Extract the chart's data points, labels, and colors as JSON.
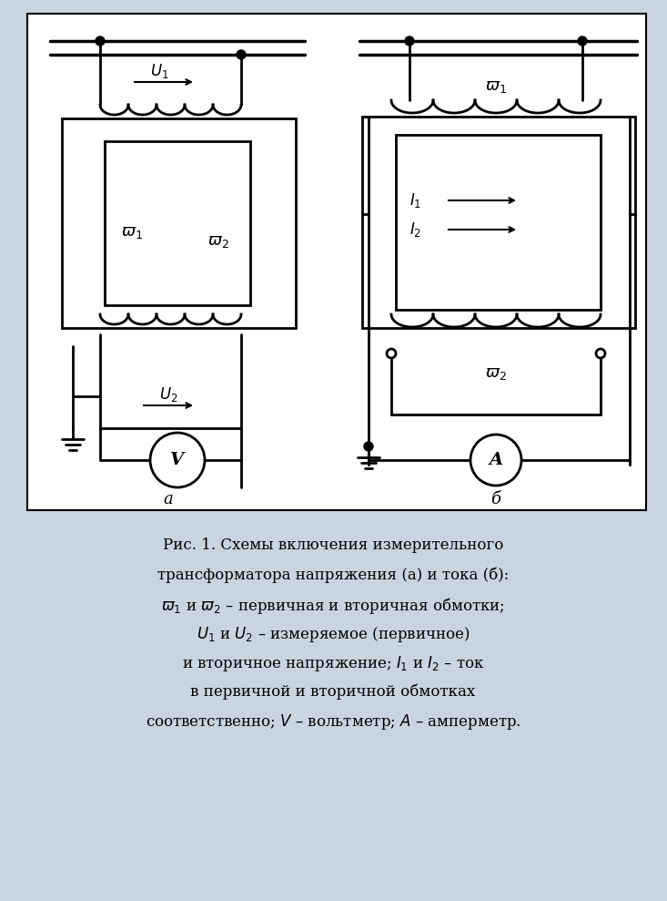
{
  "bg_color": "#dce6f0",
  "diagram_bg": "#f0f4f8",
  "line_color": "#000000",
  "line_width": 2.0,
  "caption_lines": [
    "Рис. 1. Схемы включения измерительного",
    "трансформатора напряжения (а) и тока (б):",
    "ω₁ и ω₂ – первичная и вторичная обмотки;",
    "U₁ и U₂ – измеряемое (первичное)",
    "и вторичное напряжение; I₁ и I₂ – ток",
    "в первичной и вторичной обмотках",
    "соответственно; V – вольтметр; A – амперметр."
  ]
}
